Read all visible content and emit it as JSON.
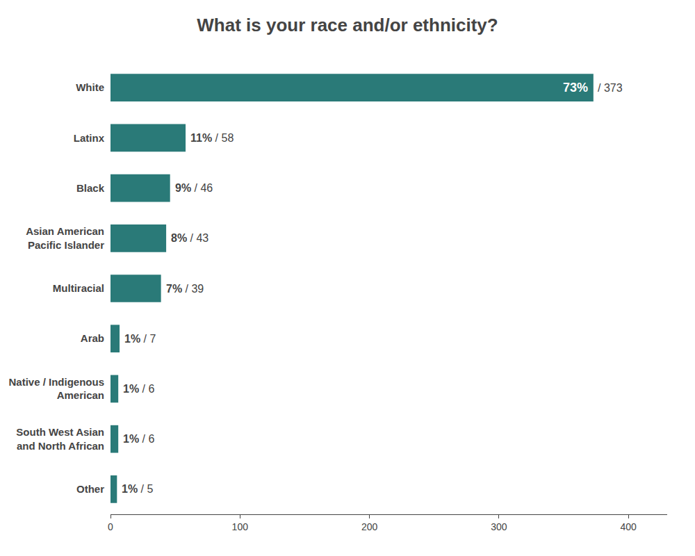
{
  "chart_data": {
    "type": "bar",
    "orientation": "horizontal",
    "title": "What is your race and/or ethnicity?",
    "categories": [
      "White",
      "Latinx",
      "Black",
      "Asian American\nPacific Islander",
      "Multiracial",
      "Arab",
      "Native / Indigenous\nAmerican",
      "South West Asian\nand North African",
      "Other"
    ],
    "values": [
      373,
      58,
      46,
      43,
      39,
      7,
      6,
      6,
      5
    ],
    "value_labels": [
      "/ 373",
      "/ 58",
      "/ 46",
      "/ 43",
      "/ 39",
      "/ 7",
      "/ 6",
      "/ 6",
      "/ 5"
    ],
    "percentages": [
      73,
      11,
      9,
      8,
      7,
      1,
      1,
      1,
      1
    ],
    "percentage_labels": [
      "73%",
      "11%",
      "9%",
      "8%",
      "7%",
      "1%",
      "1%",
      "1%",
      "1%"
    ],
    "color": "#2a7a78",
    "xlim": [
      0,
      430
    ],
    "xticks": [
      0,
      100,
      200,
      300,
      400
    ],
    "grid": false,
    "data_labels": true
  }
}
